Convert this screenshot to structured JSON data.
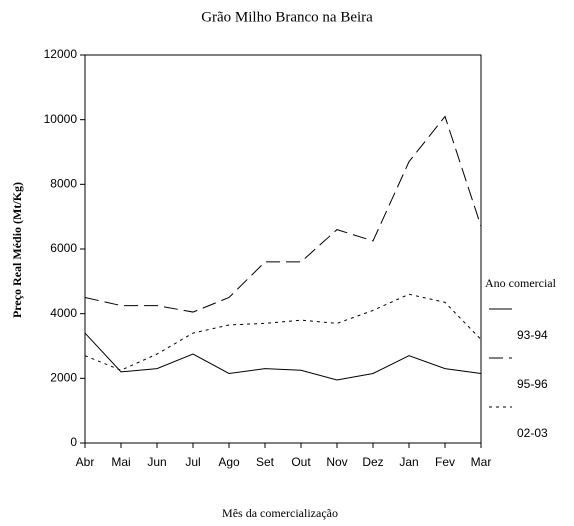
{
  "chart_data": {
    "type": "line",
    "title": "Grão Milho Branco na Beira",
    "x_label": "Mês da comercialização",
    "y_label": "Preço Real Médio (Mt/Kg)",
    "legend_title": "Ano comercial",
    "categories": [
      "Abr",
      "Mai",
      "Jun",
      "Jul",
      "Ago",
      "Set",
      "Out",
      "Nov",
      "Dez",
      "Jan",
      "Fev",
      "Mar"
    ],
    "series": [
      {
        "name": "93-94",
        "color": "#000000",
        "dash": "solid",
        "values": [
          3400,
          2200,
          2300,
          2750,
          2150,
          2300,
          2250,
          1950,
          2150,
          2700,
          2300,
          2150
        ]
      },
      {
        "name": "95-96",
        "color": "#000000",
        "dash": "dashed",
        "values": [
          4500,
          4250,
          4250,
          4050,
          4500,
          5600,
          5600,
          6600,
          6250,
          8700,
          10100,
          6700
        ]
      },
      {
        "name": "02-03",
        "color": "#000000",
        "dash": "dotted",
        "values": [
          2700,
          2250,
          2750,
          3400,
          3650,
          3700,
          3800,
          3700,
          4100,
          4600,
          4350,
          3200
        ]
      }
    ],
    "ylim": [
      0,
      12000
    ],
    "yticks": [
      0,
      2000,
      4000,
      6000,
      8000,
      10000,
      12000
    ],
    "grid": false
  }
}
